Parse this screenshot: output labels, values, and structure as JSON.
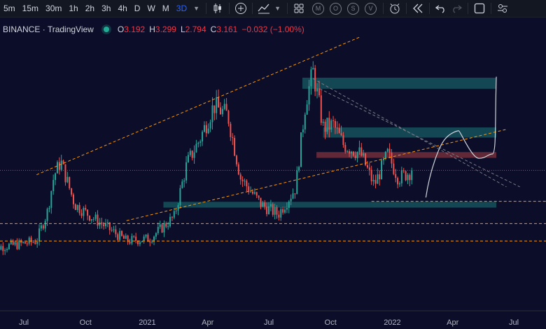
{
  "toolbar": {
    "timeframes": [
      "5m",
      "15m",
      "30m",
      "1h",
      "2h",
      "3h",
      "4h",
      "D",
      "W",
      "M",
      "3D"
    ],
    "active_timeframe": "3D",
    "indicator_circles": [
      "M",
      "O",
      "S",
      "V"
    ],
    "active_color": "#2962ff"
  },
  "legend": {
    "exchange": "BINANCE",
    "separator": "·",
    "source": "TradingView",
    "status_color": "#22ab94",
    "open_label": "O",
    "open": "3.192",
    "high_label": "H",
    "high": "3.299",
    "low_label": "L",
    "low": "2.794",
    "close_label": "C",
    "close": "3.161",
    "change": "−0.032 (−1.00%)",
    "value_color": "#f23645"
  },
  "chart_data": {
    "type": "candlestick",
    "x_tick_labels": [
      "Jul",
      "Oct",
      "2021",
      "Apr",
      "Jul",
      "Oct",
      "2022",
      "Apr",
      "Jul"
    ],
    "x_tick_dates": [
      "2020-07-01",
      "2020-10-01",
      "2021-01-01",
      "2021-04-01",
      "2021-07-01",
      "2021-10-01",
      "2022-01-01",
      "2022-04-01",
      "2022-07-01"
    ],
    "up_color": "#26a69a",
    "down_color": "#ef5350",
    "last_price": 3.161,
    "price_keypoints": [
      [
        "2020-05-10",
        1.55
      ],
      [
        "2020-06-20",
        1.62
      ],
      [
        "2020-07-20",
        1.7
      ],
      [
        "2020-08-05",
        2.3
      ],
      [
        "2020-08-15",
        3.05
      ],
      [
        "2020-08-25",
        3.35
      ],
      [
        "2020-09-15",
        2.45
      ],
      [
        "2020-10-10",
        2.2
      ],
      [
        "2020-11-10",
        1.9
      ],
      [
        "2020-12-01",
        1.7
      ],
      [
        "2021-01-05",
        1.75
      ],
      [
        "2021-02-10",
        2.2
      ],
      [
        "2021-03-01",
        3.3
      ],
      [
        "2021-03-20",
        3.8
      ],
      [
        "2021-04-10",
        4.5
      ],
      [
        "2021-05-01",
        4.3
      ],
      [
        "2021-05-20",
        3.0
      ],
      [
        "2021-06-20",
        2.45
      ],
      [
        "2021-07-15",
        2.25
      ],
      [
        "2021-08-10",
        2.8
      ],
      [
        "2021-08-25",
        4.6
      ],
      [
        "2021-09-05",
        5.2
      ],
      [
        "2021-09-20",
        4.05
      ],
      [
        "2021-10-05",
        4.1
      ],
      [
        "2021-10-20",
        3.7
      ],
      [
        "2021-11-15",
        3.5
      ],
      [
        "2021-12-05",
        2.85
      ],
      [
        "2021-12-25",
        3.5
      ],
      [
        "2022-01-10",
        3.0
      ],
      [
        "2022-02-01",
        3.16
      ]
    ],
    "zones": [
      {
        "from": "2021-08-20",
        "to": "2022-06-05",
        "low": 4.85,
        "high": 5.08,
        "color": "#26a69a"
      },
      {
        "from": "2021-09-20",
        "to": "2022-06-05",
        "low": 3.84,
        "high": 4.05,
        "color": "#26a69a"
      },
      {
        "from": "2021-09-10",
        "to": "2022-06-05",
        "low": 3.42,
        "high": 3.54,
        "color": "#ef5350"
      },
      {
        "from": "2021-01-25",
        "to": "2022-06-05",
        "low": 2.39,
        "high": 2.51,
        "color": "#26a69a"
      }
    ],
    "trend_lines": [
      {
        "from": [
          "2020-07-20",
          3.07
        ],
        "to": [
          "2021-11-15",
          5.93
        ],
        "style": "dashed",
        "color": "#ff9800"
      },
      {
        "from": [
          "2020-12-01",
          2.12
        ],
        "to": [
          "2022-06-20",
          4.01
        ],
        "style": "dashed",
        "color": "#ff9800"
      },
      {
        "from": [
          "2021-09-05",
          5.06
        ],
        "to": [
          "2022-06-20",
          2.82
        ],
        "style": "dashed",
        "color": "#787b86"
      },
      {
        "from": [
          "2021-09-15",
          4.85
        ],
        "to": [
          "2022-07-10",
          2.82
        ],
        "style": "dashed",
        "color": "#787b86"
      }
    ],
    "horizontal_lines": [
      {
        "value": 2.52,
        "from": "2021-12-01",
        "style": "dashed",
        "color": "#ff9800"
      },
      {
        "value": 2.06,
        "from": null,
        "style": "dashed",
        "color": "#ff9800"
      },
      {
        "value": 1.7,
        "from": null,
        "style": "dashed",
        "color": "#ff9800"
      },
      {
        "value": 3.161,
        "from": null,
        "style": "dotted",
        "color": "#ef5350"
      }
    ],
    "projection_path": [
      [
        "2022-02-20",
        2.6
      ],
      [
        "2022-03-20",
        3.8
      ],
      [
        "2022-04-10",
        3.98
      ],
      [
        "2022-05-10",
        3.41
      ],
      [
        "2022-05-30",
        3.5
      ],
      [
        "2022-06-05",
        5.1
      ]
    ],
    "projection_color": "#d1d4dc"
  }
}
